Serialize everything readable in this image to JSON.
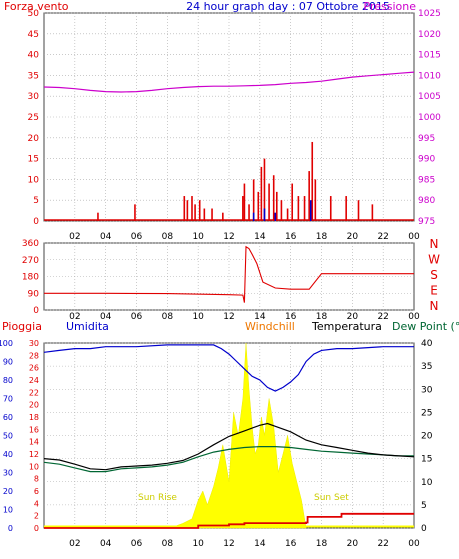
{
  "colors": {
    "red": "#e00000",
    "blue": "#0000cc",
    "magenta": "#cc00cc",
    "orange": "#ee7700",
    "green": "#006633",
    "yellow": "#ffff00",
    "grid": "#aaaaaa",
    "frame": "#444444"
  },
  "chart_data": [
    {
      "type": "bar+line",
      "title": "24 hour graph day : 07 Ottobre 2015",
      "left_label": "Forza vento",
      "right_label": "Pressione",
      "x_ticks": [
        "02",
        "04",
        "06",
        "08",
        "10",
        "12",
        "14",
        "16",
        "18",
        "20",
        "22",
        "00"
      ],
      "left_ticks": [
        0,
        5,
        10,
        15,
        20,
        25,
        30,
        35,
        40,
        45,
        50
      ],
      "right_ticks": [
        975,
        980,
        985,
        990,
        995,
        1000,
        1005,
        1010,
        1015,
        1020,
        1025
      ],
      "ylim_left": [
        0,
        50
      ],
      "ylim_right": [
        975,
        1025
      ],
      "pressure": {
        "x": [
          0,
          1,
          2,
          3,
          4,
          5,
          6,
          7,
          8,
          9,
          10,
          11,
          12,
          13,
          14,
          15,
          16,
          17,
          18,
          19,
          20,
          21,
          22,
          23,
          24
        ],
        "y": [
          1007.2,
          1007.1,
          1006.8,
          1006.4,
          1006.1,
          1006.0,
          1006.1,
          1006.4,
          1006.8,
          1007.1,
          1007.3,
          1007.4,
          1007.4,
          1007.5,
          1007.6,
          1007.8,
          1008.1,
          1008.3,
          1008.6,
          1009.1,
          1009.6,
          1009.9,
          1010.2,
          1010.5,
          1010.8
        ]
      },
      "wind_gust": {
        "x": [
          3.5,
          5.9,
          9.1,
          9.3,
          9.6,
          9.8,
          10.1,
          10.4,
          10.9,
          11.6,
          12.9,
          13.0,
          13.3,
          13.6,
          13.9,
          14.1,
          14.3,
          14.6,
          14.9,
          15.1,
          15.4,
          15.8,
          16.1,
          16.5,
          16.9,
          17.2,
          17.4,
          17.6,
          18.6,
          19.6,
          20.4,
          21.3
        ],
        "y": [
          2,
          4,
          6,
          5,
          6,
          4,
          5,
          3,
          3,
          2,
          6,
          9,
          4,
          10,
          7,
          13,
          15,
          9,
          11,
          7,
          5,
          3,
          9,
          6,
          6,
          12,
          19,
          10,
          6,
          6,
          5,
          4
        ]
      },
      "wind_avg": {
        "x": [
          13.6,
          14.3,
          15.0,
          17.3
        ],
        "y": [
          2,
          3,
          2,
          5
        ]
      }
    },
    {
      "type": "line",
      "right_label": "N W S E N",
      "y_ticks": [
        0,
        90,
        180,
        270,
        360
      ],
      "ylim": [
        0,
        360
      ],
      "direction": {
        "x": [
          0,
          4,
          8,
          12,
          12.9,
          13.0,
          13.1,
          13.3,
          13.5,
          13.8,
          14.2,
          15,
          16,
          17,
          17.2,
          18,
          20,
          24
        ],
        "y": [
          90,
          90,
          88,
          82,
          80,
          40,
          340,
          330,
          300,
          250,
          150,
          118,
          112,
          112,
          112,
          195,
          195,
          195
        ]
      }
    },
    {
      "type": "line+area",
      "labels": [
        "Pioggia",
        "Umidita",
        "Windchill",
        "Temperatura",
        "Dew Point (°C"
      ],
      "humidity_ticks": [
        0,
        10,
        20,
        30,
        40,
        50,
        60,
        70,
        80,
        90,
        100
      ],
      "rain_ticks": [
        0,
        2,
        4,
        6,
        8,
        10,
        12,
        14,
        16,
        18,
        20,
        22,
        24,
        26,
        28,
        30
      ],
      "temp_ticks": [
        0,
        5,
        10,
        15,
        20,
        25,
        30,
        35,
        40
      ],
      "ylim_humidity": [
        0,
        100
      ],
      "ylim_temp": [
        0,
        40
      ],
      "ylim_rain": [
        0,
        30
      ],
      "sun_rise_label": "Sun Rise",
      "sun_set_label": "Sun Set",
      "humidity": {
        "x": [
          0,
          1,
          2,
          3,
          4,
          6,
          8,
          10,
          11,
          11.5,
          12,
          12.5,
          13,
          13.5,
          14,
          14.5,
          15,
          15.5,
          16,
          16.5,
          17,
          17.5,
          18,
          19,
          20,
          22,
          24
        ],
        "y": [
          95,
          96,
          97,
          97,
          98,
          98,
          99,
          99,
          99,
          97,
          94,
          90,
          86,
          82,
          80,
          76,
          74,
          76,
          79,
          83,
          90,
          94,
          96,
          97,
          97,
          98,
          98
        ]
      },
      "temperature": {
        "x": [
          0,
          1,
          2,
          3,
          4,
          5,
          6,
          7,
          8,
          9,
          10,
          11,
          12,
          13,
          14,
          14.5,
          15,
          16,
          17,
          18,
          19,
          20,
          21,
          22,
          23,
          24
        ],
        "y": [
          15,
          14.7,
          13.8,
          12.8,
          12.6,
          13.2,
          13.4,
          13.6,
          14.0,
          14.6,
          16.0,
          18.0,
          19.8,
          21.0,
          22.2,
          22.6,
          22.0,
          20.8,
          19.0,
          18.0,
          17.4,
          16.8,
          16.2,
          15.8,
          15.6,
          15.4
        ]
      },
      "dew_point": {
        "x": [
          0,
          1,
          2,
          3,
          4,
          5,
          6,
          7,
          8,
          9,
          10,
          11,
          12,
          13,
          14,
          15,
          16,
          17,
          18,
          19,
          20,
          21,
          22,
          23,
          24
        ],
        "y": [
          14.2,
          13.8,
          13.0,
          12.2,
          12.2,
          12.8,
          13.0,
          13.2,
          13.6,
          14.2,
          15.4,
          16.4,
          17.0,
          17.4,
          17.6,
          17.6,
          17.4,
          17.0,
          16.6,
          16.4,
          16.2,
          16.0,
          15.8,
          15.6,
          15.6
        ]
      },
      "solar": {
        "x": [
          8.2,
          9,
          9.6,
          10,
          10.3,
          10.6,
          11,
          11.3,
          11.6,
          12,
          12.3,
          12.6,
          12.9,
          13.1,
          13.3,
          13.5,
          13.7,
          13.9,
          14.1,
          14.3,
          14.6,
          14.9,
          15.2,
          15.5,
          15.8,
          16.1,
          16.4,
          16.7,
          17.0
        ],
        "y": [
          0,
          1,
          2,
          6,
          8,
          5,
          9,
          13,
          18,
          10,
          25,
          20,
          28,
          40,
          30,
          22,
          16,
          18,
          24,
          20,
          28,
          22,
          12,
          16,
          20,
          14,
          10,
          6,
          0
        ]
      },
      "rain": {
        "x": [
          0,
          9,
          10,
          12,
          13,
          16,
          17,
          17.1,
          19,
          19.3,
          24
        ],
        "y": [
          0,
          0,
          0.4,
          0.6,
          0.8,
          0.8,
          0.9,
          1.8,
          1.8,
          2.3,
          2.3
        ]
      }
    }
  ]
}
